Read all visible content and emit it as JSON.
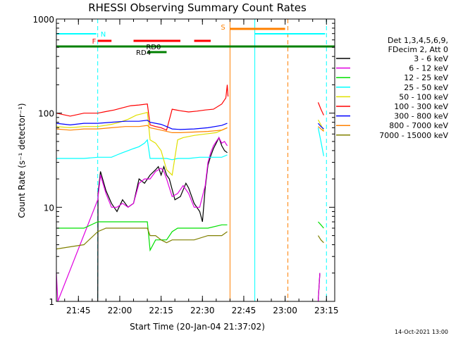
{
  "chart_data": {
    "type": "line",
    "title": "RHESSI Observing Summary Count Rates",
    "xlabel": "Start Time (20-Jan-04 21:37:02)",
    "ylabel": "Count Rate (s⁻¹ detector⁻¹)",
    "xlim_minutes": [
      0,
      101
    ],
    "ylim": [
      1,
      1000
    ],
    "yscale": "log",
    "x_ticks": [
      {
        "label": "21:45",
        "minute": 8
      },
      {
        "label": "22:00",
        "minute": 23
      },
      {
        "label": "22:15",
        "minute": 38
      },
      {
        "label": "22:30",
        "minute": 53
      },
      {
        "label": "22:45",
        "minute": 68
      },
      {
        "label": "23:00",
        "minute": 83
      },
      {
        "label": "23:15",
        "minute": 98
      }
    ],
    "y_ticks": [
      {
        "label": "1",
        "value": 1
      },
      {
        "label": "10",
        "value": 10
      },
      {
        "label": "100",
        "value": 100
      },
      {
        "label": "1000",
        "value": 1000
      }
    ],
    "legend_header": [
      "Det 1,3,4,5,6,9,",
      "FDecim 2, Att 0"
    ],
    "series": [
      {
        "name": "3 - 6 keV",
        "color": "#000000",
        "points": [
          [
            15,
            1
          ],
          [
            15.1,
            14
          ],
          [
            16,
            24
          ],
          [
            18,
            15
          ],
          [
            20,
            11
          ],
          [
            22,
            9
          ],
          [
            24,
            12
          ],
          [
            26,
            10
          ],
          [
            28,
            11
          ],
          [
            30,
            20
          ],
          [
            32,
            18
          ],
          [
            34,
            22
          ],
          [
            36,
            25
          ],
          [
            37,
            27
          ],
          [
            38,
            22
          ],
          [
            39,
            27
          ],
          [
            40,
            22
          ],
          [
            41,
            20
          ],
          [
            43,
            12
          ],
          [
            45,
            13
          ],
          [
            47,
            18
          ],
          [
            48,
            16
          ],
          [
            50,
            11
          ],
          [
            52,
            9
          ],
          [
            53,
            7
          ],
          [
            54,
            16
          ],
          [
            55,
            28
          ],
          [
            56,
            35
          ],
          [
            57,
            42
          ],
          [
            58,
            48
          ],
          [
            59,
            55
          ],
          [
            60,
            45
          ],
          [
            61,
            40
          ],
          [
            62,
            38
          ]
        ],
        "late": [
          [
            95,
            1
          ],
          [
            95.6,
            2
          ]
        ]
      },
      {
        "name": "6 - 12 keV",
        "color": "#e000e0",
        "points": [
          [
            0,
            2
          ],
          [
            0.5,
            1
          ],
          [
            15,
            12
          ],
          [
            16,
            22
          ],
          [
            18,
            14
          ],
          [
            20,
            10
          ],
          [
            22,
            10
          ],
          [
            24,
            11
          ],
          [
            26,
            10
          ],
          [
            28,
            11
          ],
          [
            30,
            18
          ],
          [
            32,
            20
          ],
          [
            34,
            20
          ],
          [
            36,
            24
          ],
          [
            38,
            26
          ],
          [
            39,
            24
          ],
          [
            40,
            20
          ],
          [
            42,
            13
          ],
          [
            44,
            14
          ],
          [
            46,
            17
          ],
          [
            48,
            14
          ],
          [
            50,
            10
          ],
          [
            52,
            10
          ],
          [
            54,
            17
          ],
          [
            55,
            30
          ],
          [
            56,
            38
          ],
          [
            57,
            45
          ],
          [
            58,
            50
          ],
          [
            59,
            55
          ],
          [
            60,
            48
          ],
          [
            61,
            50
          ],
          [
            62,
            45
          ]
        ],
        "late": [
          [
            95,
            1
          ],
          [
            95.6,
            2
          ]
        ]
      },
      {
        "name": "12 - 25 keV",
        "color": "#00e000",
        "points": [
          [
            0,
            6
          ],
          [
            5,
            6
          ],
          [
            10,
            6
          ],
          [
            15,
            7
          ],
          [
            20,
            7
          ],
          [
            25,
            7
          ],
          [
            30,
            7
          ],
          [
            33,
            7
          ],
          [
            34,
            3.5
          ],
          [
            36,
            4.5
          ],
          [
            38,
            4.5
          ],
          [
            40,
            4.5
          ],
          [
            42,
            5.5
          ],
          [
            44,
            6
          ],
          [
            46,
            6
          ],
          [
            50,
            6
          ],
          [
            55,
            6
          ],
          [
            60,
            6.5
          ],
          [
            62,
            6.5
          ]
        ],
        "late": [
          [
            95,
            7
          ],
          [
            96,
            6.5
          ],
          [
            97,
            6
          ]
        ]
      },
      {
        "name": "25 - 50 keV",
        "color": "#00ffff",
        "points": [
          [
            0,
            33
          ],
          [
            5,
            33
          ],
          [
            10,
            33
          ],
          [
            15,
            34
          ],
          [
            20,
            34
          ],
          [
            22,
            36
          ],
          [
            24,
            38
          ],
          [
            26,
            40
          ],
          [
            28,
            42
          ],
          [
            30,
            44
          ],
          [
            32,
            48
          ],
          [
            33,
            52
          ],
          [
            34,
            33
          ],
          [
            36,
            33
          ],
          [
            38,
            33
          ],
          [
            40,
            33
          ],
          [
            42,
            32
          ],
          [
            44,
            33
          ],
          [
            48,
            33
          ],
          [
            52,
            34
          ],
          [
            56,
            34
          ],
          [
            60,
            34
          ],
          [
            62,
            36
          ]
        ],
        "late": [
          [
            95,
            70
          ],
          [
            96,
            50
          ],
          [
            97,
            35
          ]
        ]
      },
      {
        "name": "50 - 100 keV",
        "color": "#e0e000",
        "points": [
          [
            0,
            72
          ],
          [
            5,
            70
          ],
          [
            10,
            72
          ],
          [
            15,
            72
          ],
          [
            20,
            76
          ],
          [
            23,
            80
          ],
          [
            26,
            86
          ],
          [
            29,
            95
          ],
          [
            32,
            100
          ],
          [
            33,
            102
          ],
          [
            34,
            52
          ],
          [
            36,
            48
          ],
          [
            38,
            40
          ],
          [
            40,
            25
          ],
          [
            42,
            22
          ],
          [
            44,
            52
          ],
          [
            46,
            55
          ],
          [
            50,
            58
          ],
          [
            54,
            60
          ],
          [
            58,
            62
          ],
          [
            62,
            70
          ]
        ],
        "late": [
          [
            95,
            85
          ],
          [
            96,
            75
          ],
          [
            97,
            65
          ]
        ]
      },
      {
        "name": "100 - 300 keV",
        "color": "#ff0000",
        "points": [
          [
            0,
            100
          ],
          [
            5,
            93
          ],
          [
            10,
            100
          ],
          [
            15,
            100
          ],
          [
            18,
            104
          ],
          [
            21,
            108
          ],
          [
            24,
            114
          ],
          [
            27,
            120
          ],
          [
            30,
            122
          ],
          [
            33,
            125
          ],
          [
            34,
            75
          ],
          [
            36,
            72
          ],
          [
            38,
            70
          ],
          [
            40,
            66
          ],
          [
            42,
            110
          ],
          [
            45,
            106
          ],
          [
            48,
            103
          ],
          [
            51,
            105
          ],
          [
            54,
            108
          ],
          [
            57,
            110
          ],
          [
            60,
            125
          ],
          [
            61.5,
            145
          ],
          [
            62,
            200
          ],
          [
            62.3,
            150
          ]
        ],
        "late": [
          [
            95,
            130
          ],
          [
            96,
            110
          ],
          [
            97,
            95
          ]
        ]
      },
      {
        "name": "300 - 800 keV",
        "color": "#0000ff",
        "points": [
          [
            0,
            78
          ],
          [
            5,
            75
          ],
          [
            10,
            78
          ],
          [
            15,
            78
          ],
          [
            20,
            80
          ],
          [
            25,
            82
          ],
          [
            30,
            82
          ],
          [
            33,
            84
          ],
          [
            34,
            80
          ],
          [
            36,
            78
          ],
          [
            38,
            76
          ],
          [
            40,
            72
          ],
          [
            42,
            68
          ],
          [
            45,
            67
          ],
          [
            50,
            68
          ],
          [
            55,
            70
          ],
          [
            60,
            74
          ],
          [
            62,
            78
          ]
        ],
        "late": [
          [
            95,
            78
          ],
          [
            96,
            72
          ],
          [
            97,
            68
          ]
        ]
      },
      {
        "name": "800 - 7000 keV",
        "color": "#ff8000",
        "points": [
          [
            0,
            68
          ],
          [
            5,
            66
          ],
          [
            10,
            68
          ],
          [
            15,
            68
          ],
          [
            20,
            70
          ],
          [
            25,
            72
          ],
          [
            30,
            72
          ],
          [
            33,
            74
          ],
          [
            34,
            70
          ],
          [
            36,
            68
          ],
          [
            38,
            66
          ],
          [
            40,
            64
          ],
          [
            42,
            62
          ],
          [
            45,
            62
          ],
          [
            50,
            63
          ],
          [
            55,
            64
          ],
          [
            60,
            66
          ],
          [
            62,
            70
          ]
        ],
        "late": [
          [
            95,
            72
          ],
          [
            96,
            68
          ],
          [
            97,
            64
          ]
        ]
      },
      {
        "name": "7000 - 15000 keV",
        "color": "#808000",
        "points": [
          [
            0,
            3.6
          ],
          [
            5,
            3.8
          ],
          [
            10,
            4
          ],
          [
            15,
            5.5
          ],
          [
            18,
            6
          ],
          [
            22,
            6
          ],
          [
            26,
            6
          ],
          [
            30,
            6
          ],
          [
            33,
            6
          ],
          [
            34,
            5
          ],
          [
            36,
            5
          ],
          [
            38,
            4.5
          ],
          [
            40,
            4.2
          ],
          [
            42,
            4.5
          ],
          [
            46,
            4.5
          ],
          [
            50,
            4.5
          ],
          [
            55,
            5
          ],
          [
            60,
            5
          ],
          [
            62,
            5.5
          ]
        ],
        "late": [
          [
            95,
            5
          ],
          [
            96,
            4.5
          ],
          [
            97,
            4.2
          ]
        ]
      }
    ],
    "flag_bars": [
      {
        "label": "N",
        "color": "#00ffff",
        "segments": [
          [
            0,
            14.5
          ],
          [
            72,
            97.5
          ]
        ]
      },
      {
        "label": "F",
        "color": "#ff0000",
        "segments": [
          [
            15,
            20
          ],
          [
            28,
            45
          ],
          [
            50,
            56
          ]
        ]
      },
      {
        "label": "",
        "color": "#008000",
        "segments": [
          [
            0,
            101
          ]
        ]
      },
      {
        "label": "RD0",
        "color": "#008000",
        "segments": [
          [
            30,
            40
          ]
        ]
      },
      {
        "label": "RD4",
        "color": "#008000",
        "segments": [
          [
            33,
            40
          ]
        ]
      },
      {
        "label": "S",
        "color": "#ff8000",
        "segments": [
          [
            63,
            83
          ]
        ]
      }
    ],
    "vertical_markers": [
      {
        "color": "#00ffff",
        "style": "dashed",
        "minute": 15
      },
      {
        "color": "#ff8000",
        "style": "solid",
        "minute": 63
      },
      {
        "color": "#00ffff",
        "style": "solid",
        "minute": 72
      },
      {
        "color": "#ff8000",
        "style": "dashed",
        "minute": 84
      },
      {
        "color": "#00ffff",
        "style": "dashed",
        "minute": 98
      }
    ],
    "grid": false,
    "legend_position": "right"
  },
  "footer_stamp": "14-Oct-2021 13:00"
}
